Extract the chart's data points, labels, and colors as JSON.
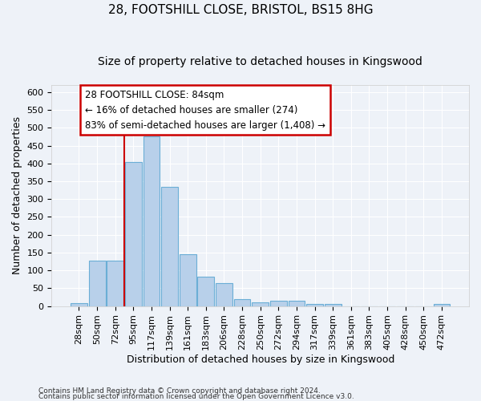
{
  "title1": "28, FOOTSHILL CLOSE, BRISTOL, BS15 8HG",
  "title2": "Size of property relative to detached houses in Kingswood",
  "xlabel": "Distribution of detached houses by size in Kingswood",
  "ylabel": "Number of detached properties",
  "categories": [
    "28sqm",
    "50sqm",
    "72sqm",
    "95sqm",
    "117sqm",
    "139sqm",
    "161sqm",
    "183sqm",
    "206sqm",
    "228sqm",
    "250sqm",
    "272sqm",
    "294sqm",
    "317sqm",
    "339sqm",
    "361sqm",
    "383sqm",
    "405sqm",
    "428sqm",
    "450sqm",
    "472sqm"
  ],
  "values": [
    9,
    127,
    127,
    404,
    476,
    335,
    145,
    83,
    65,
    20,
    11,
    15,
    15,
    6,
    6,
    0,
    0,
    0,
    0,
    0,
    5
  ],
  "bar_color": "#b8d0ea",
  "bar_edge_color": "#6baed6",
  "vline_color": "#cc0000",
  "vline_pos": 3,
  "annotation_text_line1": "28 FOOTSHILL CLOSE: 84sqm",
  "annotation_text_line2": "← 16% of detached houses are smaller (274)",
  "annotation_text_line3": "83% of semi-detached houses are larger (1,408) →",
  "ylim": [
    0,
    620
  ],
  "yticks": [
    0,
    50,
    100,
    150,
    200,
    250,
    300,
    350,
    400,
    450,
    500,
    550,
    600
  ],
  "footnote1": "Contains HM Land Registry data © Crown copyright and database right 2024.",
  "footnote2": "Contains public sector information licensed under the Open Government Licence v3.0.",
  "bg_color": "#eef2f8",
  "grid_color": "white",
  "title1_fontsize": 11,
  "title2_fontsize": 10,
  "xlabel_fontsize": 9,
  "ylabel_fontsize": 9,
  "tick_fontsize": 8,
  "annot_fontsize": 8.5,
  "footnote_fontsize": 6.5
}
